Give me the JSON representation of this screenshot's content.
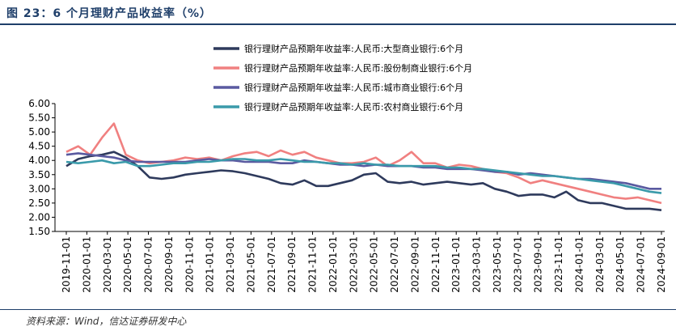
{
  "title": "图 23：6 个月理财产品收益率（%）",
  "source": "资料来源：Wind，信达证券研发中心",
  "chart_data": {
    "type": "line",
    "ylim": [
      1.5,
      6.0
    ],
    "y_ticks": [
      "6.00",
      "5.50",
      "5.00",
      "4.50",
      "4.00",
      "3.50",
      "3.00",
      "2.50",
      "2.00",
      "1.50"
    ],
    "x_ticks": [
      "2019-11-01",
      "2020-01-01",
      "2020-03-01",
      "2020-05-01",
      "2020-07-01",
      "2020-09-01",
      "2020-11-01",
      "2021-01-01",
      "2021-03-01",
      "2021-05-01",
      "2021-07-01",
      "2021-09-01",
      "2021-11-01",
      "2022-01-01",
      "2022-03-01",
      "2022-05-01",
      "2022-07-01",
      "2022-09-01",
      "2022-11-01",
      "2023-01-01",
      "2023-03-01",
      "2023-05-01",
      "2023-07-01",
      "2023-09-01",
      "2023-11-01",
      "2024-01-01",
      "2024-03-01",
      "2024-05-01",
      "2024-07-01",
      "2024-09-01"
    ],
    "legend_position": "top-right",
    "series": [
      {
        "name": "银行理财产品预期年收益率:人民币:大型商业银行:6个月",
        "color": "#2e3a5c",
        "values": [
          3.8,
          4.05,
          4.15,
          4.2,
          4.3,
          4.1,
          3.8,
          3.4,
          3.35,
          3.4,
          3.5,
          3.55,
          3.6,
          3.65,
          3.62,
          3.55,
          3.45,
          3.35,
          3.2,
          3.15,
          3.3,
          3.1,
          3.1,
          3.2,
          3.3,
          3.5,
          3.55,
          3.25,
          3.2,
          3.25,
          3.15,
          3.2,
          3.25,
          3.2,
          3.15,
          3.2,
          3.0,
          2.9,
          2.75,
          2.8,
          2.8,
          2.7,
          2.9,
          2.6,
          2.5,
          2.5,
          2.4,
          2.3,
          2.3,
          2.3,
          2.25
        ]
      },
      {
        "name": "银行理财产品预期年收益率:人民币:股份制商业银行:6个月",
        "color": "#f08080",
        "values": [
          4.3,
          4.5,
          4.2,
          4.8,
          5.3,
          4.2,
          4.0,
          3.9,
          3.95,
          4.0,
          4.1,
          4.05,
          4.1,
          4.0,
          4.15,
          4.25,
          4.3,
          4.15,
          4.35,
          4.2,
          4.3,
          4.1,
          4.0,
          3.9,
          3.9,
          3.95,
          4.1,
          3.8,
          4.0,
          4.3,
          3.9,
          3.9,
          3.75,
          3.85,
          3.8,
          3.7,
          3.6,
          3.55,
          3.4,
          3.2,
          3.3,
          3.2,
          3.1,
          3.0,
          2.9,
          2.8,
          2.7,
          2.65,
          2.7,
          2.6,
          2.5
        ]
      },
      {
        "name": "银行理财产品预期年收益率:人民币:城市商业银行:6个月",
        "color": "#5a5aa0",
        "values": [
          4.2,
          4.25,
          4.2,
          4.15,
          4.1,
          4.0,
          3.95,
          3.95,
          3.95,
          3.95,
          3.95,
          4.0,
          4.05,
          4.0,
          4.0,
          3.95,
          3.95,
          3.95,
          3.9,
          3.9,
          4.0,
          3.95,
          3.9,
          3.85,
          3.85,
          3.8,
          3.85,
          3.8,
          3.8,
          3.8,
          3.75,
          3.75,
          3.7,
          3.7,
          3.7,
          3.65,
          3.6,
          3.6,
          3.5,
          3.55,
          3.5,
          3.45,
          3.4,
          3.35,
          3.35,
          3.3,
          3.25,
          3.2,
          3.1,
          3.0,
          3.0
        ]
      },
      {
        "name": "银行理财产品预期年收益率:人民币:农村商业银行:6个月",
        "color": "#3a9aaa",
        "values": [
          3.95,
          3.9,
          3.95,
          4.0,
          3.9,
          3.95,
          3.8,
          3.8,
          3.85,
          3.9,
          3.9,
          3.95,
          3.95,
          4.0,
          4.05,
          4.05,
          4.0,
          4.0,
          4.05,
          4.0,
          3.95,
          3.95,
          3.9,
          3.9,
          3.85,
          3.9,
          3.85,
          3.85,
          3.8,
          3.8,
          3.8,
          3.8,
          3.75,
          3.75,
          3.7,
          3.7,
          3.65,
          3.6,
          3.55,
          3.5,
          3.45,
          3.45,
          3.4,
          3.35,
          3.3,
          3.25,
          3.2,
          3.1,
          3.0,
          2.9,
          2.85
        ]
      }
    ]
  }
}
